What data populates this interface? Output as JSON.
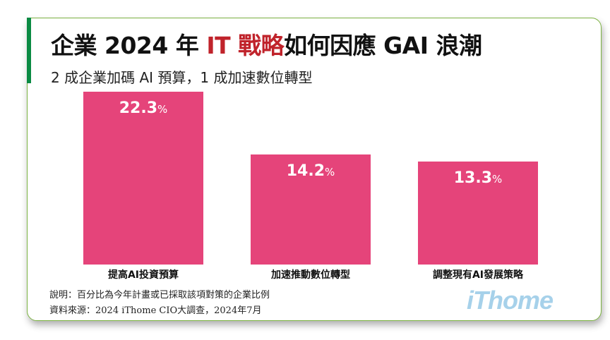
{
  "header": {
    "title_pre": "企業 2024 年 ",
    "title_highlight": "IT 戰略",
    "title_post": "如何因應 GAI 浪潮",
    "subtitle": "2 成企業加碼 AI 預算，1 成加速數位轉型"
  },
  "chart_data": {
    "type": "bar",
    "categories": [
      "提高AI投資預算",
      "加速推動數位轉型",
      "調整現有AI發展策略"
    ],
    "values": [
      22.3,
      14.2,
      13.3
    ],
    "value_labels": [
      "22.3",
      "14.2",
      "13.3"
    ],
    "unit": "%",
    "bar_color": "#e5447a",
    "grid": false,
    "ylim": [
      0,
      22.3
    ]
  },
  "footer": {
    "note": "說明：百分比為今年計畫或已採取該項對策的企業比例",
    "source": "資料來源：2024 iThome CIO大調查，2024年7月",
    "logo": "iThome"
  },
  "colors": {
    "accent": "#c0232b",
    "green": "#0a8a43",
    "bar": "#e5447a",
    "logo": "#a6d1ea"
  }
}
